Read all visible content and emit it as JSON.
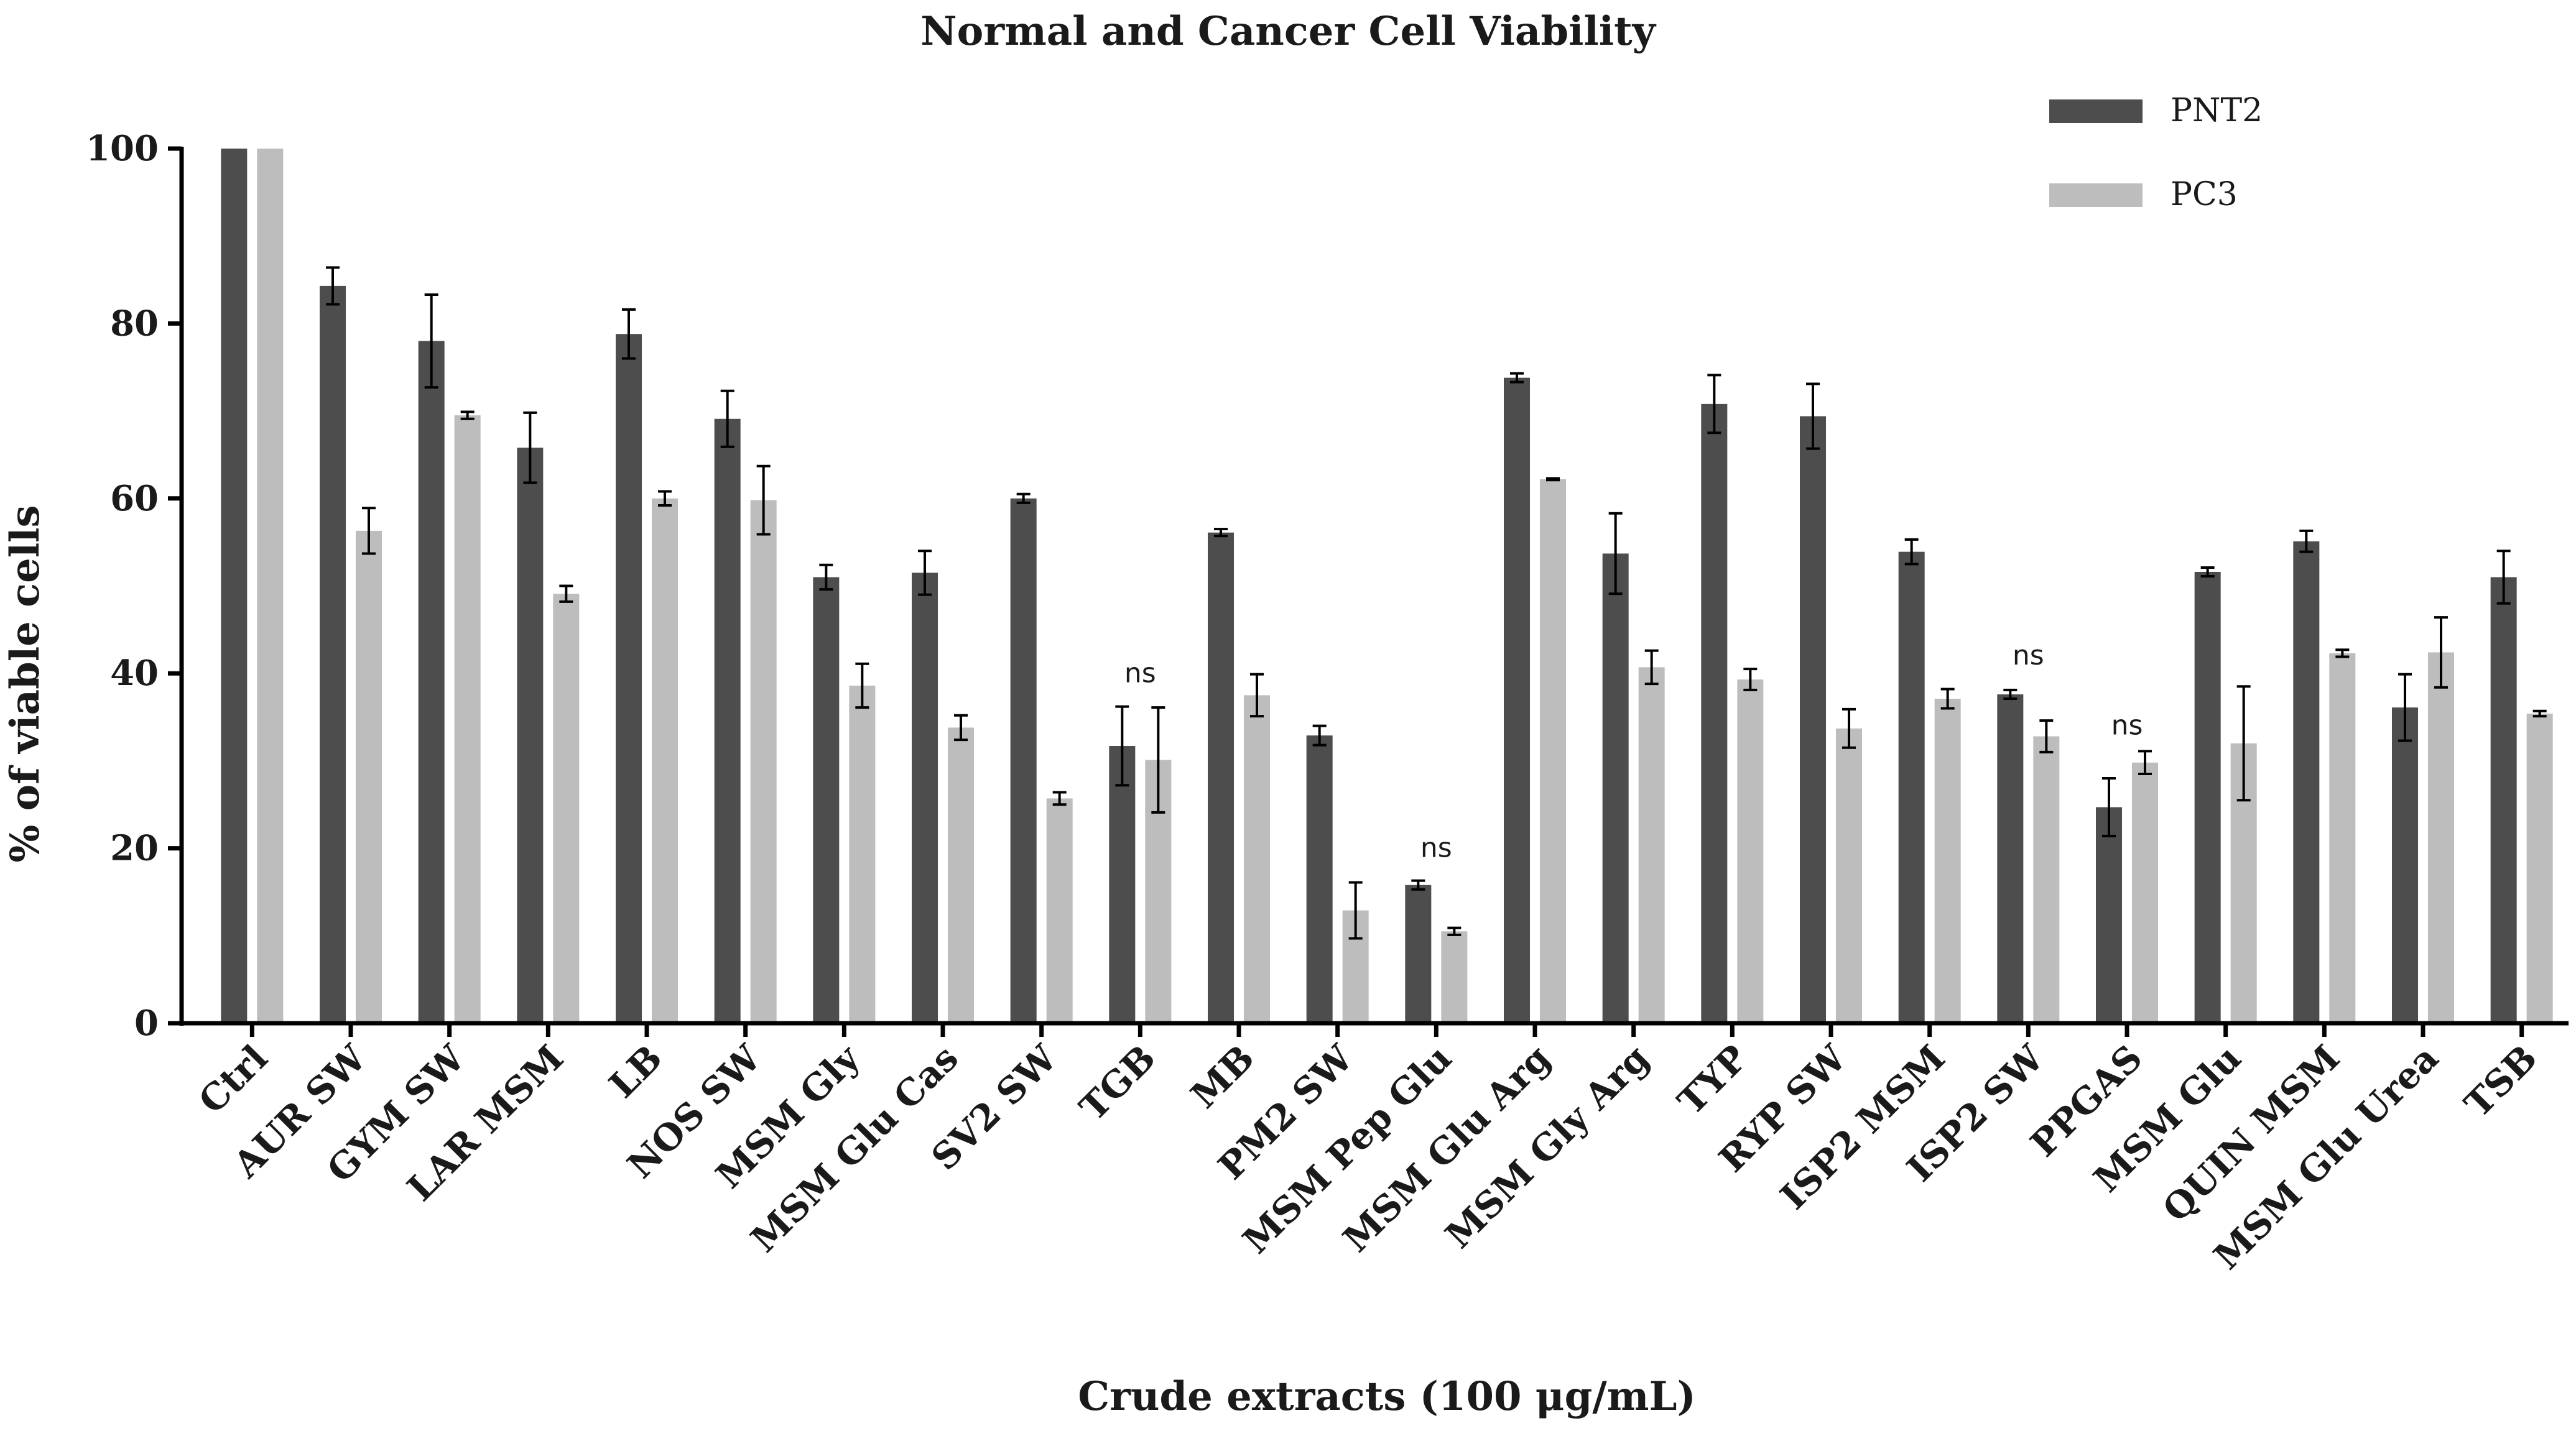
{
  "chart_data": {
    "type": "bar",
    "title": "Normal and Cancer Cell Viability",
    "xlabel": "Crude extracts (100 μg/mL)",
    "ylabel": "% of viable cells",
    "ylim": [
      0,
      100
    ],
    "yticks": [
      "0",
      "20",
      "40",
      "60",
      "80",
      "100"
    ],
    "legend_position": "top-right",
    "categories": [
      "Ctrl",
      "AUR SW",
      "GYM SW",
      "LAR MSM",
      "LB",
      "NOS SW",
      "MSM Gly",
      "MSM Glu Cas",
      "SV2 SW",
      "TGB",
      "MB",
      "PM2 SW",
      "MSM Pep Glu",
      "MSM Glu Arg",
      "MSM Gly Arg",
      "TYP",
      "RYP SW",
      "ISP2 MSM",
      "ISP2 SW",
      "PPGAS",
      "MSM Glu",
      "QUIN MSM",
      "MSM Glu Urea",
      "TSB"
    ],
    "series": [
      {
        "name": "PNT2",
        "color": "#4d4d4d",
        "values": [
          100,
          84.3,
          78,
          65.8,
          78.8,
          69.1,
          51,
          51.5,
          60,
          31.7,
          56.1,
          32.9,
          15.8,
          73.8,
          53.7,
          70.8,
          69.4,
          53.9,
          37.6,
          24.7,
          51.6,
          55.1,
          36.1,
          51
        ],
        "errors": [
          0,
          2.1,
          5.3,
          4,
          2.8,
          3.2,
          1.4,
          2.5,
          0.5,
          4.5,
          0.4,
          1.1,
          0.5,
          0.5,
          4.6,
          3.3,
          3.7,
          1.4,
          0.5,
          3.3,
          0.5,
          1.2,
          3.8,
          3
        ]
      },
      {
        "name": "PC3",
        "color": "#bdbdbd",
        "values": [
          100,
          56.3,
          69.5,
          49.1,
          60,
          59.8,
          38.6,
          33.8,
          25.7,
          30.1,
          37.5,
          12.9,
          10.5,
          62.2,
          40.7,
          39.3,
          33.7,
          37.1,
          32.8,
          29.8,
          32,
          42.3,
          42.4,
          35.4
        ],
        "errors": [
          0,
          2.6,
          0.4,
          0.9,
          0.8,
          3.9,
          2.5,
          1.4,
          0.7,
          6,
          2.4,
          3.2,
          0.4,
          0.1,
          1.9,
          1.2,
          2.2,
          1.1,
          1.8,
          1.3,
          6.5,
          0.4,
          4,
          0.3
        ]
      }
    ],
    "annotations": [
      {
        "text": "ns",
        "category": "TGB",
        "y": 39
      },
      {
        "text": "ns",
        "category": "MSM Pep Glu",
        "y": 19
      },
      {
        "text": "ns",
        "category": "ISP2 SW",
        "y": 41
      },
      {
        "text": "ns",
        "category": "PPGAS",
        "y": 33
      }
    ]
  }
}
